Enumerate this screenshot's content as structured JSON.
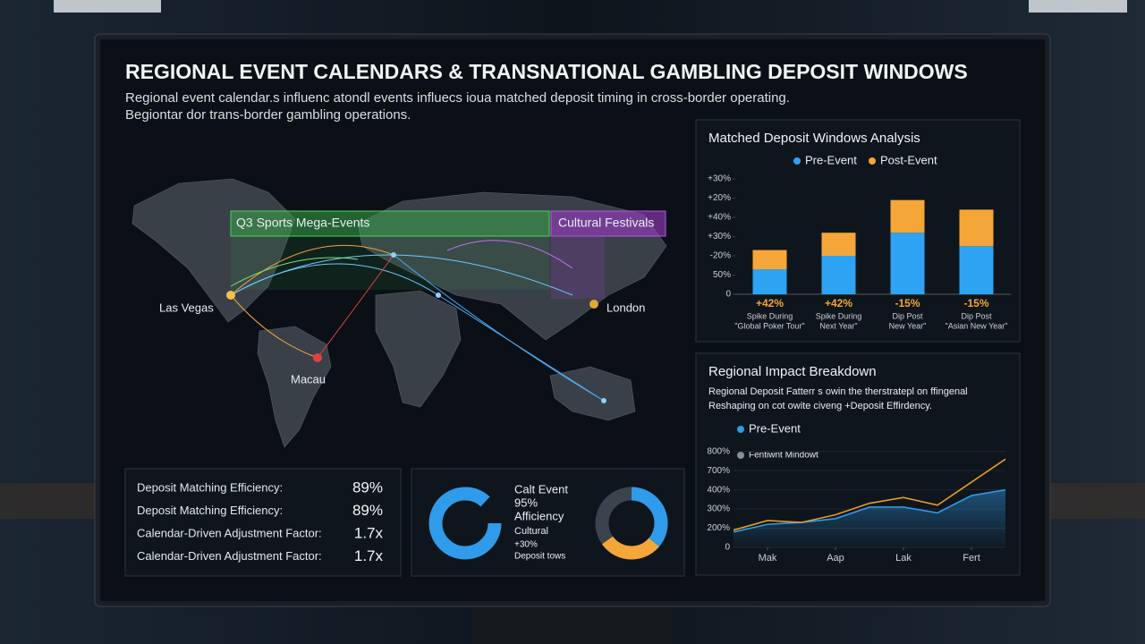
{
  "header": {
    "title": "REGIONAL EVENT CALENDARS & TRANSNATIONAL GAMBLING DEPOSIT WINDOWS",
    "subtitle": [
      "Regional event calendar.s influenc atondl events influecs ioua matched deposit timing in cross-border operating.",
      "Begiontar dor trans-border gambling operations."
    ]
  },
  "map": {
    "banners": [
      "Q3 Sports Mega-Events",
      "Cultural Festivals"
    ],
    "cities": [
      "Las Vegas",
      "Macau",
      "London"
    ]
  },
  "stats": [
    [
      "Deposit Matching Efficiency:",
      "89%"
    ],
    [
      "Deposit Matching Efficiency:",
      "89%"
    ],
    [
      "Calendar-Driven Adjustment Factor:",
      "1.7x"
    ],
    [
      "Calendar-Driven Adjustment Factor:",
      "1.7x"
    ]
  ],
  "donut": {
    "lines": [
      "Calt Event",
      "95%",
      "Afficiency",
      "Cultural",
      "+30%",
      "Deposit tows"
    ]
  },
  "chart_data": [
    {
      "type": "bar",
      "title": "Matched Deposit Windows Analysis",
      "categories": [
        [
          "Spike During",
          "\"Global Poker Tour\""
        ],
        [
          "Spike During",
          "Next Year\""
        ],
        [
          "Dip Post",
          "New Year\""
        ],
        [
          "Dip Post",
          "\"Asian New Year\""
        ]
      ],
      "annotations": [
        "+42%",
        "+42%",
        "-15%",
        "-15%"
      ],
      "series": [
        {
          "name": "Pre-Event",
          "color": "#2ea3f2",
          "values": [
            13,
            20,
            32,
            25
          ]
        },
        {
          "name": "Post-Event",
          "color": "#f4a638",
          "values": [
            10,
            12,
            17,
            19
          ]
        }
      ],
      "stacked": true,
      "ylim": [
        0,
        60
      ],
      "yticks": [
        0,
        {
          "value": 10,
          "label": "50%"
        },
        {
          "value": 20,
          "label": "-20%"
        },
        {
          "value": 30,
          "label": "+30%"
        },
        {
          "value": 40,
          "label": "+40%"
        },
        {
          "value": 50,
          "label": "+20%"
        },
        {
          "value": 60,
          "label": "+30%"
        }
      ]
    },
    {
      "type": "line",
      "title": "Regional Impact Breakdown",
      "subtitle": [
        "Regional Deposit Fatterr s owin the therstratepl on ffingenal",
        "Reshaping on cot owite civeng +Deposit Effirdency."
      ],
      "legend": [
        {
          "name": "Pre-Event",
          "color": "#2f9bea"
        },
        {
          "name": "Fentiwnt Mindowt",
          "color": "#8a9099"
        }
      ],
      "x": [
        0,
        1,
        2,
        3,
        4,
        5,
        6,
        7,
        8
      ],
      "xlim": [
        0,
        8
      ],
      "xticks": [
        {
          "value": 1,
          "label": "Mak"
        },
        {
          "value": 3,
          "label": "Aap"
        },
        {
          "value": 5,
          "label": "Lak"
        },
        {
          "value": 7,
          "label": "Fert"
        }
      ],
      "series": [
        {
          "color": "#2f9bea",
          "values": [
            0.8,
            1.2,
            1.3,
            1.5,
            2.1,
            2.1,
            1.8,
            2.7,
            3.0
          ],
          "area": true
        },
        {
          "color": "#e89a2c",
          "values": [
            0.9,
            1.4,
            1.3,
            1.7,
            2.3,
            2.6,
            2.2,
            3.4,
            4.6
          ]
        }
      ],
      "ylim": [
        0,
        5.5
      ],
      "yticks": [
        0,
        {
          "value": 1,
          "label": "200%"
        },
        {
          "value": 2,
          "label": "300%"
        },
        {
          "value": 3,
          "label": "400%"
        },
        {
          "value": 4,
          "label": "700%"
        },
        {
          "value": 5,
          "label": "800%"
        }
      ]
    }
  ]
}
